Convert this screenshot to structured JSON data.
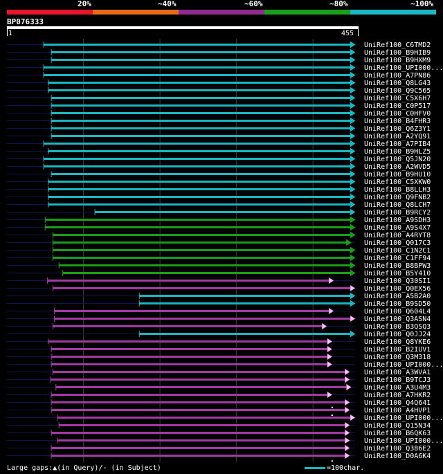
{
  "legend": {
    "labels": [
      "20%",
      "~40%",
      "~60%",
      "~80%",
      "~100%"
    ],
    "colors": [
      "#e8152d",
      "#e86a16",
      "#912c8f",
      "#1a9f1a",
      "#17b9c3"
    ]
  },
  "query": {
    "title": "BP076333",
    "start": "1",
    "end": "455",
    "length": 455
  },
  "colors": {
    "cyan": "#17b9c3",
    "green": "#1a9f1a",
    "purple": "#a43aa6",
    "lavender": "#f0c8f0",
    "navy": "#0a1650",
    "grid": "#3a3a3a"
  },
  "hits": [
    {
      "label": "UniRef100_C6TMD2",
      "start": 48,
      "end": 455,
      "color": "cyan",
      "marker": "head"
    },
    {
      "label": "UniRef100_B9HIB9",
      "start": 58,
      "end": 455,
      "color": "cyan",
      "marker": "head"
    },
    {
      "label": "UniRef100_B9HXM9",
      "start": 58,
      "end": 455,
      "color": "cyan",
      "marker": "head"
    },
    {
      "label": "UniRef100_UPI000...",
      "start": 48,
      "end": 455,
      "color": "cyan",
      "marker": "head"
    },
    {
      "label": "UniRef100_A7PN86",
      "start": 48,
      "end": 455,
      "color": "cyan",
      "marker": "head"
    },
    {
      "label": "UniRef100_Q8LG43",
      "start": 54,
      "end": 455,
      "color": "cyan",
      "marker": "head"
    },
    {
      "label": "UniRef100_Q9C565",
      "start": 54,
      "end": 455,
      "color": "cyan",
      "marker": "head"
    },
    {
      "label": "UniRef100_C5X6H7",
      "start": 58,
      "end": 455,
      "color": "cyan",
      "marker": "head"
    },
    {
      "label": "UniRef100_C0P517",
      "start": 58,
      "end": 455,
      "color": "cyan",
      "marker": "head"
    },
    {
      "label": "UniRef100_C0HFV0",
      "start": 58,
      "end": 455,
      "color": "cyan",
      "marker": "head"
    },
    {
      "label": "UniRef100_B4FHR3",
      "start": 58,
      "end": 455,
      "color": "cyan",
      "marker": "head"
    },
    {
      "label": "UniRef100_Q6Z3Y1",
      "start": 58,
      "end": 455,
      "color": "cyan",
      "marker": "head"
    },
    {
      "label": "UniRef100_A2YQ91",
      "start": 58,
      "end": 455,
      "color": "cyan",
      "marker": "head"
    },
    {
      "label": "UniRef100_A7PIB4",
      "start": 48,
      "end": 455,
      "color": "cyan",
      "marker": "head"
    },
    {
      "label": "UniRef100_B9HLZ5",
      "start": 54,
      "end": 455,
      "color": "cyan",
      "marker": "head"
    },
    {
      "label": "UniRef100_Q5JN20",
      "start": 48,
      "end": 455,
      "color": "cyan",
      "marker": "head"
    },
    {
      "label": "UniRef100_A2WVD5",
      "start": 48,
      "end": 455,
      "color": "cyan",
      "marker": "head"
    },
    {
      "label": "UniRef100_B9HU10",
      "start": 58,
      "end": 455,
      "color": "cyan",
      "marker": "head"
    },
    {
      "label": "UniRef100_C5XKW0",
      "start": 54,
      "end": 455,
      "color": "cyan",
      "marker": "head"
    },
    {
      "label": "UniRef100_B8LLH3",
      "start": 54,
      "end": 455,
      "color": "cyan",
      "marker": "head"
    },
    {
      "label": "UniRef100_Q9FNB2",
      "start": 54,
      "end": 455,
      "color": "cyan",
      "marker": "head"
    },
    {
      "label": "UniRef100_Q8LCH7",
      "start": 54,
      "end": 455,
      "color": "cyan",
      "marker": "head"
    },
    {
      "label": "UniRef100_B9RCY2",
      "start": 115,
      "end": 455,
      "color": "cyan",
      "marker": "head"
    },
    {
      "label": "UniRef100_A9SDH3",
      "start": 50,
      "end": 455,
      "color": "green",
      "marker": "head"
    },
    {
      "label": "UniRef100_A9S4X7",
      "start": 50,
      "end": 455,
      "color": "green",
      "marker": "head"
    },
    {
      "label": "UniRef100_A4RYT8",
      "start": 60,
      "end": 455,
      "color": "green",
      "marker": "head"
    },
    {
      "label": "UniRef100_Q017C3",
      "start": 60,
      "end": 450,
      "color": "green",
      "marker": "head"
    },
    {
      "label": "UniRef100_C1N2C1",
      "start": 60,
      "end": 455,
      "color": "green",
      "marker": "head"
    },
    {
      "label": "UniRef100_C1FF94",
      "start": 60,
      "end": 455,
      "color": "green",
      "marker": "head"
    },
    {
      "label": "UniRef100_B8BPW3",
      "start": 68,
      "end": 455,
      "color": "green",
      "marker": "head"
    },
    {
      "label": "UniRef100_B5Y410",
      "start": 73,
      "end": 455,
      "color": "green",
      "marker": "head"
    },
    {
      "label": "UniRef100_Q30SI1",
      "start": 53,
      "end": 427,
      "color": "purple",
      "marker": "head"
    },
    {
      "label": "UniRef100_Q0EX56",
      "start": 60,
      "end": 455,
      "color": "purple",
      "marker": "head"
    },
    {
      "label": "UniRef100_A5B2A0",
      "start": 173,
      "end": 455,
      "color": "cyan",
      "marker": "head"
    },
    {
      "label": "UniRef100_B9SD50",
      "start": 173,
      "end": 455,
      "color": "cyan",
      "marker": "head"
    },
    {
      "label": "UniRef100_Q604L4",
      "start": 62,
      "end": 427,
      "color": "purple",
      "marker": "head"
    },
    {
      "label": "UniRef100_Q3ASN4",
      "start": 62,
      "end": 455,
      "color": "purple",
      "marker": "head"
    },
    {
      "label": "UniRef100_B3QSQ3",
      "start": 60,
      "end": 418,
      "color": "purple",
      "marker": "head"
    },
    {
      "label": "UniRef100_Q0JJ24",
      "start": 173,
      "end": 455,
      "color": "cyan",
      "marker": "head"
    },
    {
      "label": "UniRef100_Q8YKE6",
      "start": 54,
      "end": 425,
      "color": "purple",
      "marker": "head"
    },
    {
      "label": "UniRef100_B2IUV1",
      "start": 58,
      "end": 425,
      "color": "purple",
      "marker": "head"
    },
    {
      "label": "UniRef100_Q3M318",
      "start": 58,
      "end": 425,
      "color": "purple",
      "marker": "head"
    },
    {
      "label": "UniRef100_UPI000...",
      "start": 58,
      "end": 425,
      "color": "purple",
      "marker": "head"
    },
    {
      "label": "UniRef100_A3WVA1",
      "start": 60,
      "end": 448,
      "color": "purple",
      "marker": "head"
    },
    {
      "label": "UniRef100_B9TCJ3",
      "start": 57,
      "end": 448,
      "color": "purple",
      "marker": "head"
    },
    {
      "label": "UniRef100_A3U4M3",
      "start": 64,
      "end": 450,
      "color": "purple",
      "marker": "head"
    },
    {
      "label": "UniRef100_A7HKR2",
      "start": 58,
      "end": 425,
      "color": "purple",
      "marker": "head"
    },
    {
      "label": "UniRef100_Q4Q641",
      "start": 58,
      "end": 448,
      "color": "purple",
      "marker": "head",
      "gap": 425
    },
    {
      "label": "UniRef100_A4HVP1",
      "start": 58,
      "end": 448,
      "color": "purple",
      "marker": "head",
      "gap": 425
    },
    {
      "label": "UniRef100_UPI000...",
      "start": 66,
      "end": 455,
      "color": "purple",
      "marker": "head"
    },
    {
      "label": "UniRef100_Q15N34",
      "start": 68,
      "end": 448,
      "color": "purple",
      "marker": "head"
    },
    {
      "label": "UniRef100_B6QK63",
      "start": 58,
      "end": 448,
      "color": "purple",
      "marker": "head"
    },
    {
      "label": "UniRef100_UPI000...",
      "start": 66,
      "end": 448,
      "color": "purple",
      "marker": "head"
    },
    {
      "label": "UniRef100_Q386E2",
      "start": 58,
      "end": 448,
      "color": "purple",
      "marker": "head"
    },
    {
      "label": "UniRef100_D0A6K4",
      "start": 58,
      "end": 448,
      "color": "purple",
      "marker": "head",
      "gap": 425
    }
  ],
  "footer": {
    "gaps_text": "Large gaps:▲(in Query)/- (in Subject)",
    "scale_text": "=100char."
  }
}
